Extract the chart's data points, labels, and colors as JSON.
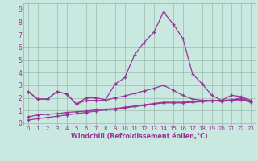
{
  "xlabel": "Windchill (Refroidissement éolien,°C)",
  "bg_color": "#c8e8e0",
  "grid_color": "#99bbaa",
  "line_color": "#993399",
  "xlim": [
    -0.5,
    23.5
  ],
  "ylim": [
    -0.2,
    9.5
  ],
  "xticks": [
    0,
    1,
    2,
    3,
    4,
    5,
    6,
    7,
    8,
    9,
    10,
    11,
    12,
    13,
    14,
    15,
    16,
    17,
    18,
    19,
    20,
    21,
    22,
    23
  ],
  "yticks": [
    0,
    1,
    2,
    3,
    4,
    5,
    6,
    7,
    8,
    9
  ],
  "series1_x": [
    0,
    1,
    2,
    3,
    4,
    5,
    6,
    7,
    8,
    9,
    10,
    11,
    12,
    13,
    14,
    15,
    16,
    17,
    18,
    19,
    20,
    21,
    22,
    23
  ],
  "series1_y": [
    2.5,
    1.9,
    1.9,
    2.5,
    2.3,
    1.5,
    2.0,
    2.0,
    1.85,
    3.1,
    3.6,
    5.4,
    6.4,
    7.2,
    8.8,
    7.85,
    6.7,
    3.9,
    3.1,
    2.2,
    1.8,
    2.2,
    2.1,
    1.8
  ],
  "series2_x": [
    0,
    1,
    2,
    3,
    4,
    5,
    6,
    7,
    8,
    9,
    10,
    11,
    12,
    13,
    14,
    15,
    16,
    17,
    18,
    19,
    20,
    21,
    22,
    23
  ],
  "series2_y": [
    2.5,
    1.9,
    1.9,
    2.5,
    2.3,
    1.5,
    1.8,
    1.8,
    1.8,
    2.0,
    2.15,
    2.35,
    2.55,
    2.75,
    3.0,
    2.6,
    2.2,
    1.9,
    1.8,
    1.8,
    1.7,
    1.8,
    2.0,
    1.7
  ],
  "series3_x": [
    0,
    1,
    2,
    3,
    4,
    5,
    6,
    7,
    8,
    9,
    10,
    11,
    12,
    13,
    14,
    15,
    16,
    17,
    18,
    19,
    20,
    21,
    22,
    23
  ],
  "series3_y": [
    0.5,
    0.65,
    0.7,
    0.75,
    0.85,
    0.9,
    0.95,
    1.05,
    1.1,
    1.15,
    1.25,
    1.35,
    1.45,
    1.55,
    1.65,
    1.65,
    1.65,
    1.7,
    1.75,
    1.8,
    1.8,
    1.85,
    1.9,
    1.75
  ],
  "series4_x": [
    0,
    1,
    2,
    3,
    4,
    5,
    6,
    7,
    8,
    9,
    10,
    11,
    12,
    13,
    14,
    15,
    16,
    17,
    18,
    19,
    20,
    21,
    22,
    23
  ],
  "series4_y": [
    0.25,
    0.35,
    0.45,
    0.55,
    0.65,
    0.75,
    0.85,
    0.95,
    1.05,
    1.1,
    1.2,
    1.3,
    1.4,
    1.5,
    1.6,
    1.6,
    1.6,
    1.65,
    1.7,
    1.75,
    1.75,
    1.8,
    1.85,
    1.65
  ]
}
